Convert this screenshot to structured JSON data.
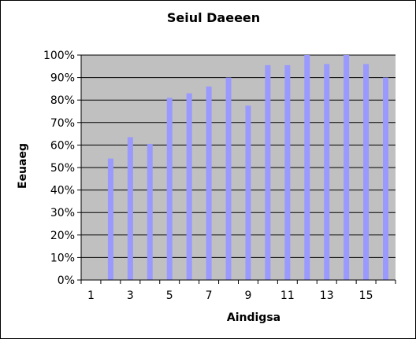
{
  "chart_data": {
    "type": "bar",
    "title": "Seiul Daeeen",
    "xlabel": "Aindigsa",
    "ylabel": "Eeuaeg",
    "x": [
      1,
      2,
      3,
      4,
      5,
      6,
      7,
      8,
      9,
      10,
      11,
      12,
      13,
      14,
      15,
      16
    ],
    "values": [
      0,
      0.54,
      0.635,
      0.605,
      0.81,
      0.83,
      0.86,
      0.9,
      0.775,
      0.955,
      0.955,
      1.0,
      0.96,
      1.0,
      0.96,
      0.9
    ],
    "x_tick_labels": [
      "1",
      "3",
      "5",
      "7",
      "9",
      "11",
      "13",
      "15"
    ],
    "y_tick_labels": [
      "0%",
      "10%",
      "20%",
      "30%",
      "40%",
      "50%",
      "60%",
      "70%",
      "80%",
      "90%",
      "100%"
    ],
    "ylim": [
      0,
      1
    ],
    "grid": true,
    "legend": "none",
    "colors": {
      "bar": "#9999ff",
      "plot_background": "#c0c0c0",
      "grid": "#000000"
    }
  }
}
